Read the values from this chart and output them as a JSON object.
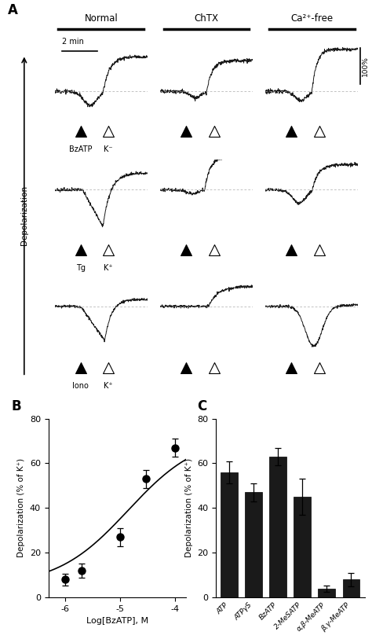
{
  "panel_A_title": "A",
  "panel_B_title": "B",
  "panel_C_title": "C",
  "col_labels": [
    "Normal",
    "ChTX",
    "Ca²⁺-free"
  ],
  "triangle_labels_row1": [
    "BzATP",
    "K⁻"
  ],
  "triangle_labels_row2": [
    "Tg",
    "K⁺"
  ],
  "triangle_labels_row3": [
    "Iono",
    "K⁺"
  ],
  "scale_label_time": "2 min",
  "scale_label_amp": "100%",
  "dose_response": {
    "x": [
      -6.0,
      -5.7,
      -5.0,
      -4.52,
      -4.0
    ],
    "y": [
      8,
      12,
      27,
      53,
      67
    ],
    "yerr": [
      2.5,
      3,
      4,
      4,
      4
    ],
    "xlabel": "Log[BzATP], M",
    "ylabel": "Depolarization (% of K⁺)",
    "xlim": [
      -6.3,
      -3.8
    ],
    "ylim": [
      0,
      80
    ],
    "yticks": [
      0,
      20,
      40,
      60,
      80
    ]
  },
  "bar_chart": {
    "categories": [
      "ATP",
      "ATPγS",
      "BzATP",
      "2-MeSATP",
      "α,β-MeATP",
      "β,γ-MeATP"
    ],
    "values": [
      56,
      47,
      63,
      45,
      4,
      8
    ],
    "yerr": [
      5,
      4,
      4,
      8,
      1.5,
      3
    ],
    "ylabel": "Depolarization (% of K⁺)",
    "ylim": [
      0,
      80
    ],
    "yticks": [
      0,
      20,
      40,
      60,
      80
    ],
    "bar_color": "#1a1a1a"
  },
  "bg_color": "#ffffff",
  "trace_color": "#1a1a1a"
}
